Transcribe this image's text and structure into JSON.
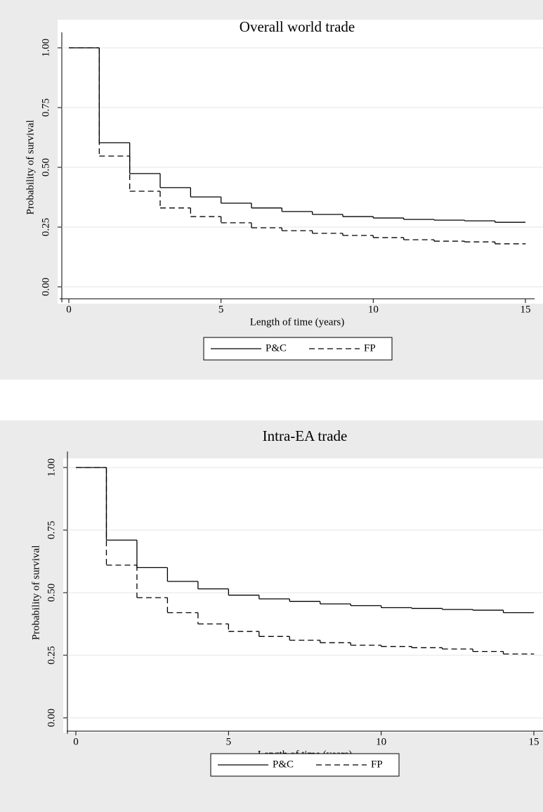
{
  "chart_data": [
    {
      "type": "step",
      "title": "Overall world trade",
      "x_label": "Length of time (years)",
      "y_label": "Probability of survival",
      "x": [
        0,
        1,
        2,
        3,
        4,
        5,
        6,
        7,
        8,
        9,
        10,
        11,
        12,
        13,
        14,
        15
      ],
      "series": [
        {
          "name": "P&C",
          "color": "#000000",
          "dash": "solid",
          "values": [
            1.0,
            0.603,
            0.474,
            0.415,
            0.376,
            0.35,
            0.33,
            0.315,
            0.303,
            0.294,
            0.288,
            0.282,
            0.279,
            0.276,
            0.27,
            0.27
          ]
        },
        {
          "name": "FP",
          "color": "#000000",
          "dash": "dashed",
          "values": [
            1.0,
            0.547,
            0.4,
            0.33,
            0.294,
            0.268,
            0.247,
            0.235,
            0.224,
            0.215,
            0.206,
            0.197,
            0.191,
            0.188,
            0.18,
            0.18
          ]
        }
      ],
      "xlim": [
        -0.3,
        15.3
      ],
      "xticks": [
        0,
        5,
        10,
        15
      ],
      "ylim": [
        -0.05,
        1.05
      ],
      "yticks": [
        {
          "value": 0,
          "label": "0.00"
        },
        {
          "value": 0.25,
          "label": "0.25"
        },
        {
          "value": 0.5,
          "label": "0.50"
        },
        {
          "value": 0.75,
          "label": "0.75"
        },
        {
          "value": 1,
          "label": "1.00"
        }
      ],
      "grid": true
    },
    {
      "type": "step",
      "title": "Intra-EA trade",
      "x_label": "Length of time (years)",
      "y_label": "Probability of survival",
      "x": [
        0,
        1,
        2,
        3,
        4,
        5,
        6,
        7,
        8,
        9,
        10,
        11,
        12,
        13,
        14,
        15
      ],
      "series": [
        {
          "name": "P&C",
          "color": "#000000",
          "dash": "solid",
          "values": [
            1.0,
            0.71,
            0.6,
            0.545,
            0.515,
            0.49,
            0.475,
            0.465,
            0.455,
            0.448,
            0.44,
            0.437,
            0.433,
            0.43,
            0.42,
            0.42
          ]
        },
        {
          "name": "FP",
          "color": "#000000",
          "dash": "dashed",
          "values": [
            1.0,
            0.61,
            0.48,
            0.42,
            0.375,
            0.345,
            0.325,
            0.31,
            0.3,
            0.29,
            0.285,
            0.28,
            0.275,
            0.265,
            0.255,
            0.255
          ]
        }
      ],
      "xlim": [
        -0.3,
        15.3
      ],
      "xticks": [
        0,
        5,
        10,
        15
      ],
      "ylim": [
        -0.05,
        1.05
      ],
      "yticks": [
        {
          "value": 0,
          "label": "0.00"
        },
        {
          "value": 0.25,
          "label": "0.25"
        },
        {
          "value": 0.5,
          "label": "0.50"
        },
        {
          "value": 0.75,
          "label": "0.75"
        },
        {
          "value": 1,
          "label": "1.00"
        }
      ],
      "grid": true
    }
  ]
}
